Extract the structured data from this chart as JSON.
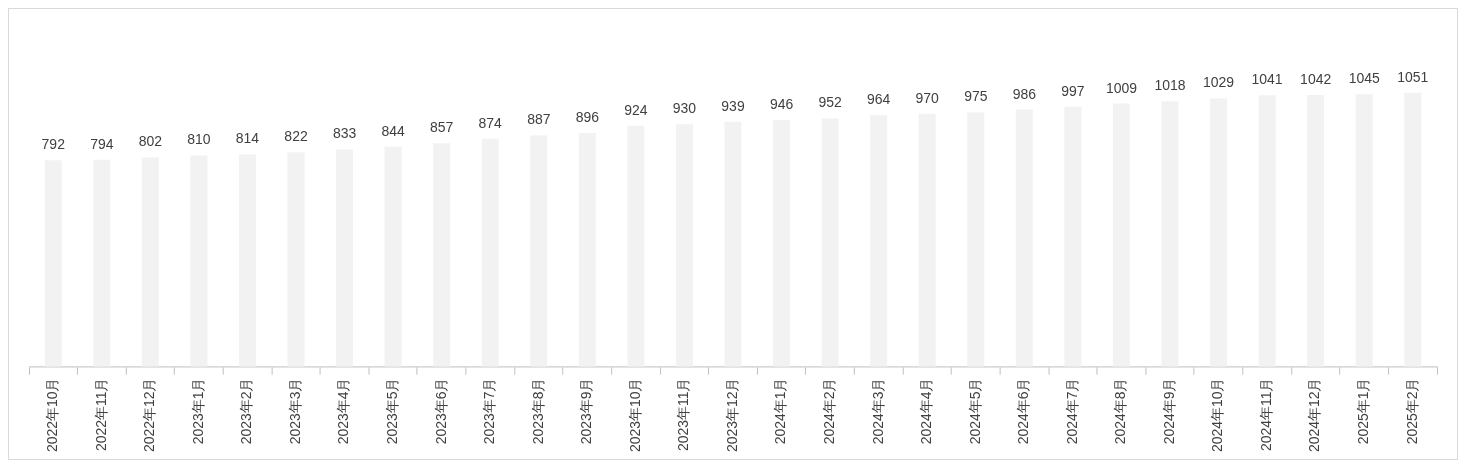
{
  "chart_data": {
    "type": "bar",
    "categories": [
      "2022年10月",
      "2022年11月",
      "2022年12月",
      "2023年1月",
      "2023年2月",
      "2023年3月",
      "2023年4月",
      "2023年5月",
      "2023年6月",
      "2023年7月",
      "2023年8月",
      "2023年9月",
      "2023年10月",
      "2023年11月",
      "2023年12月",
      "2024年1月",
      "2024年2月",
      "2024年3月",
      "2024年4月",
      "2024年5月",
      "2024年6月",
      "2024年7月",
      "2024年8月",
      "2024年9月",
      "2024年10月",
      "2024年11月",
      "2024年12月",
      "2025年1月",
      "2025年2月"
    ],
    "values": [
      792,
      794,
      802,
      810,
      814,
      822,
      833,
      844,
      857,
      874,
      887,
      896,
      924,
      930,
      939,
      946,
      952,
      964,
      970,
      975,
      986,
      997,
      1009,
      1018,
      1029,
      1041,
      1042,
      1045,
      1051
    ],
    "color": "#f2f2f2",
    "data_labels": true,
    "grid": false,
    "legend": false,
    "tick_labels": "x"
  }
}
